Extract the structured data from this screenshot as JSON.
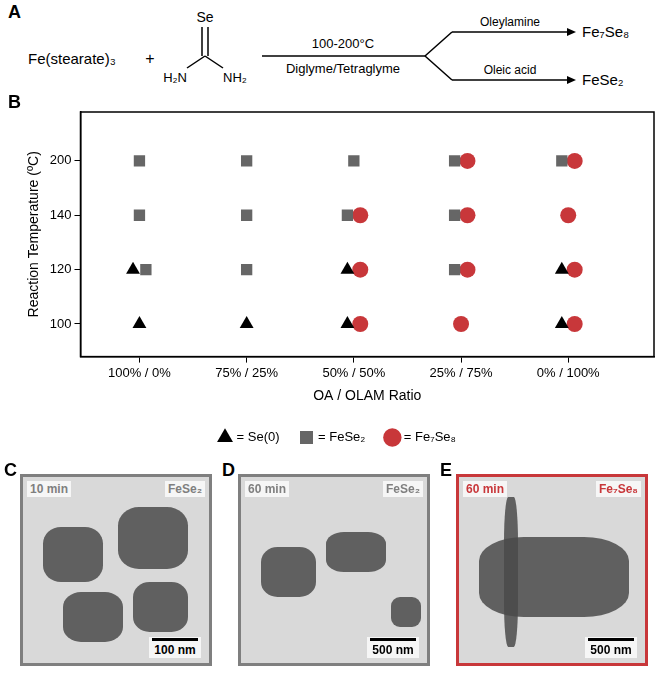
{
  "scheme": {
    "label": "A",
    "reactant": "Fe(stearate)₃",
    "plus": "+",
    "selenourea": {
      "top": "Se",
      "left": "H₂N",
      "right": "NH₂"
    },
    "conditions_above": "100-200°C",
    "conditions_below": "Diglyme/Tetraglyme",
    "branches": [
      {
        "reagent": "Oleylamine",
        "product": "Fe₇Se₈"
      },
      {
        "reagent": "Oleic acid",
        "product": "FeSe₂"
      }
    ]
  },
  "chart_data": {
    "label": "B",
    "type": "scatter",
    "x_title": "OA / OLAM Ratio",
    "y_title": "Reaction Temperature (ºC)",
    "categories": [
      "100% / 0%",
      "75% / 25%",
      "50% / 50%",
      "25% / 75%",
      "0% / 100%"
    ],
    "y_categories": [
      100,
      120,
      140,
      200
    ],
    "grid": false,
    "legend": "bottom",
    "series": [
      {
        "name": "= Se(0)",
        "color": "#000000",
        "marker": "triangle",
        "x": [
          "100% / 0%",
          "100% / 0%",
          "75% / 25%",
          "50% / 50%",
          "50% / 50%",
          "0% / 100%",
          "0% / 100%"
        ],
        "values": [
          120,
          100,
          100,
          120,
          100,
          120,
          100
        ]
      },
      {
        "name": "= FeSe₂",
        "color": "#666666",
        "marker": "square",
        "x": [
          "100% / 0%",
          "100% / 0%",
          "100% / 0%",
          "75% / 25%",
          "75% / 25%",
          "75% / 25%",
          "50% / 50%",
          "50% / 50%",
          "25% / 75%",
          "25% / 75%",
          "25% / 75%",
          "0% / 100%"
        ],
        "values": [
          200,
          140,
          120,
          200,
          140,
          120,
          200,
          140,
          200,
          140,
          120,
          200
        ]
      },
      {
        "name": "= Fe₇Se₈",
        "color": "#c8373a",
        "marker": "circle",
        "x": [
          "50% / 50%",
          "50% / 50%",
          "50% / 50%",
          "25% / 75%",
          "25% / 75%",
          "25% / 75%",
          "25% / 75%",
          "0% / 100%",
          "0% / 100%",
          "0% / 100%",
          "0% / 100%"
        ],
        "values": [
          140,
          120,
          100,
          200,
          140,
          120,
          100,
          200,
          140,
          120,
          100
        ]
      }
    ]
  },
  "micrographs": [
    {
      "label": "C",
      "time": "10 min",
      "phase": "FeSe₂",
      "scale_bar": "100 nm",
      "color": "#7f7f7f"
    },
    {
      "label": "D",
      "time": "60 min",
      "phase": "FeSe₂",
      "scale_bar": "500 nm",
      "color": "#7f7f7f"
    },
    {
      "label": "E",
      "time": "60 min",
      "phase": "Fe₇Se₈",
      "scale_bar": "500 nm",
      "color": "#c8373a"
    }
  ]
}
